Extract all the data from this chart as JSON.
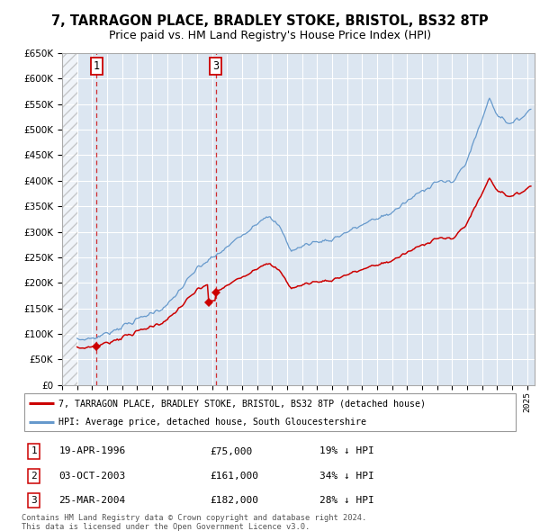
{
  "title1": "7, TARRAGON PLACE, BRADLEY STOKE, BRISTOL, BS32 8TP",
  "title2": "Price paid vs. HM Land Registry's House Price Index (HPI)",
  "bg_color": "#dce6f1",
  "grid_color": "#ffffff",
  "red_line_color": "#cc0000",
  "blue_line_color": "#6699cc",
  "sale_marker_color": "#cc0000",
  "vline_color": "#cc0000",
  "sale1_year": 1996.3,
  "sale1_price": 75000,
  "sale2_year": 2003.75,
  "sale2_price": 161000,
  "sale3_year": 2004.23,
  "sale3_price": 182000,
  "ylim_min": 0,
  "ylim_max": 650000,
  "xlim_min": 1994.0,
  "xlim_max": 2025.5,
  "data_start_year": 1995.0,
  "legend_entries": [
    "7, TARRAGON PLACE, BRADLEY STOKE, BRISTOL, BS32 8TP (detached house)",
    "HPI: Average price, detached house, South Gloucestershire"
  ],
  "table_rows": [
    [
      "1",
      "19-APR-1996",
      "£75,000",
      "19% ↓ HPI"
    ],
    [
      "2",
      "03-OCT-2003",
      "£161,000",
      "34% ↓ HPI"
    ],
    [
      "3",
      "25-MAR-2004",
      "£182,000",
      "28% ↓ HPI"
    ]
  ],
  "footer": "Contains HM Land Registry data © Crown copyright and database right 2024.\nThis data is licensed under the Open Government Licence v3.0."
}
